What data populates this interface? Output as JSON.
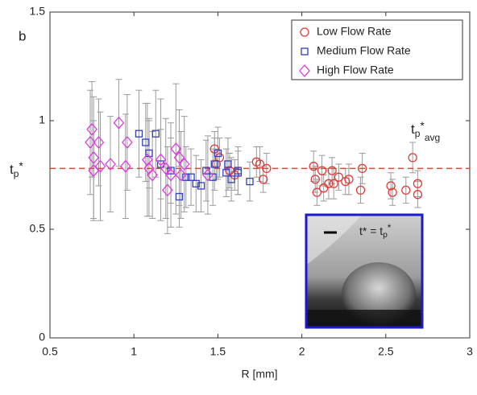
{
  "chart_data": {
    "type": "scatter",
    "panel_label": "b",
    "x_label": "R [mm]",
    "xlim": [
      0.5,
      3
    ],
    "xticks": [
      0.5,
      1,
      1.5,
      2,
      2.5,
      3
    ],
    "ylim": [
      0,
      1.5
    ],
    "yticks": [
      0,
      0.5,
      1,
      1.5
    ],
    "errorbar_color": "#9a9a9a",
    "reference_line": {
      "value": 0.78,
      "color": "#e8413c"
    },
    "y_ref_label": [
      "t",
      "p",
      "*"
    ],
    "ref_label": [
      "t",
      "p",
      "*",
      "avg"
    ],
    "inset_label": [
      "t* = t",
      "p",
      "*"
    ],
    "legend": "upper right",
    "series": [
      {
        "name": "Low Flow Rate",
        "color": "#e03a3a",
        "marker": "circle",
        "x": [
          1.48,
          1.49,
          1.51,
          1.57,
          1.6,
          1.73,
          1.75,
          1.77,
          1.79,
          2.07,
          2.08,
          2.09,
          2.12,
          2.13,
          2.16,
          2.18,
          2.19,
          2.22,
          2.26,
          2.28,
          2.35,
          2.36,
          2.53,
          2.54,
          2.62,
          2.66,
          2.69,
          2.69
        ],
        "values": [
          0.87,
          0.8,
          0.83,
          0.77,
          0.75,
          0.81,
          0.8,
          0.73,
          0.78,
          0.79,
          0.73,
          0.67,
          0.77,
          0.69,
          0.71,
          0.77,
          0.71,
          0.74,
          0.72,
          0.73,
          0.68,
          0.78,
          0.7,
          0.67,
          0.68,
          0.83,
          0.71,
          0.66
        ],
        "errors": [
          0.08,
          0.07,
          0.09,
          0.08,
          0.07,
          0.07,
          0.08,
          0.06,
          0.07,
          0.07,
          0.06,
          0.06,
          0.07,
          0.06,
          0.07,
          0.06,
          0.07,
          0.06,
          0.06,
          0.07,
          0.06,
          0.07,
          0.06,
          0.06,
          0.06,
          0.07,
          0.06,
          0.06
        ]
      },
      {
        "name": "Medium Flow Rate",
        "color": "#2f3fbf",
        "marker": "square",
        "x": [
          1.03,
          1.07,
          1.09,
          1.13,
          1.16,
          1.22,
          1.27,
          1.31,
          1.34,
          1.37,
          1.4,
          1.43,
          1.47,
          1.5,
          1.48,
          1.55,
          1.56,
          1.58,
          1.62,
          1.62,
          1.69
        ],
        "values": [
          0.94,
          0.9,
          0.85,
          0.94,
          0.8,
          0.77,
          0.65,
          0.74,
          0.74,
          0.71,
          0.7,
          0.77,
          0.74,
          0.85,
          0.8,
          0.76,
          0.8,
          0.73,
          0.77,
          0.76,
          0.72
        ],
        "errors": [
          0.2,
          0.18,
          0.16,
          0.2,
          0.16,
          0.15,
          0.14,
          0.14,
          0.13,
          0.13,
          0.12,
          0.14,
          0.13,
          0.12,
          0.12,
          0.11,
          0.12,
          0.1,
          0.11,
          0.1,
          0.09
        ]
      },
      {
        "name": "High Flow Rate",
        "color": "#e03ae0",
        "marker": "diamond",
        "x": [
          0.74,
          0.75,
          0.76,
          0.76,
          0.79,
          0.8,
          0.86,
          0.91,
          0.95,
          0.96,
          1.08,
          1.09,
          1.11,
          1.16,
          1.19,
          1.2,
          1.22,
          1.25,
          1.27,
          1.28,
          1.3,
          1.44
        ],
        "values": [
          0.9,
          0.96,
          0.77,
          0.83,
          0.9,
          0.79,
          0.8,
          0.99,
          0.79,
          0.9,
          0.82,
          0.78,
          0.75,
          0.82,
          0.78,
          0.68,
          0.75,
          0.87,
          0.83,
          0.75,
          0.8,
          0.75
        ],
        "errors": [
          0.24,
          0.22,
          0.23,
          0.28,
          0.2,
          0.25,
          0.22,
          0.2,
          0.24,
          0.22,
          0.26,
          0.22,
          0.2,
          0.28,
          0.23,
          0.2,
          0.24,
          0.3,
          0.22,
          0.2,
          0.22,
          0.18
        ]
      }
    ]
  }
}
